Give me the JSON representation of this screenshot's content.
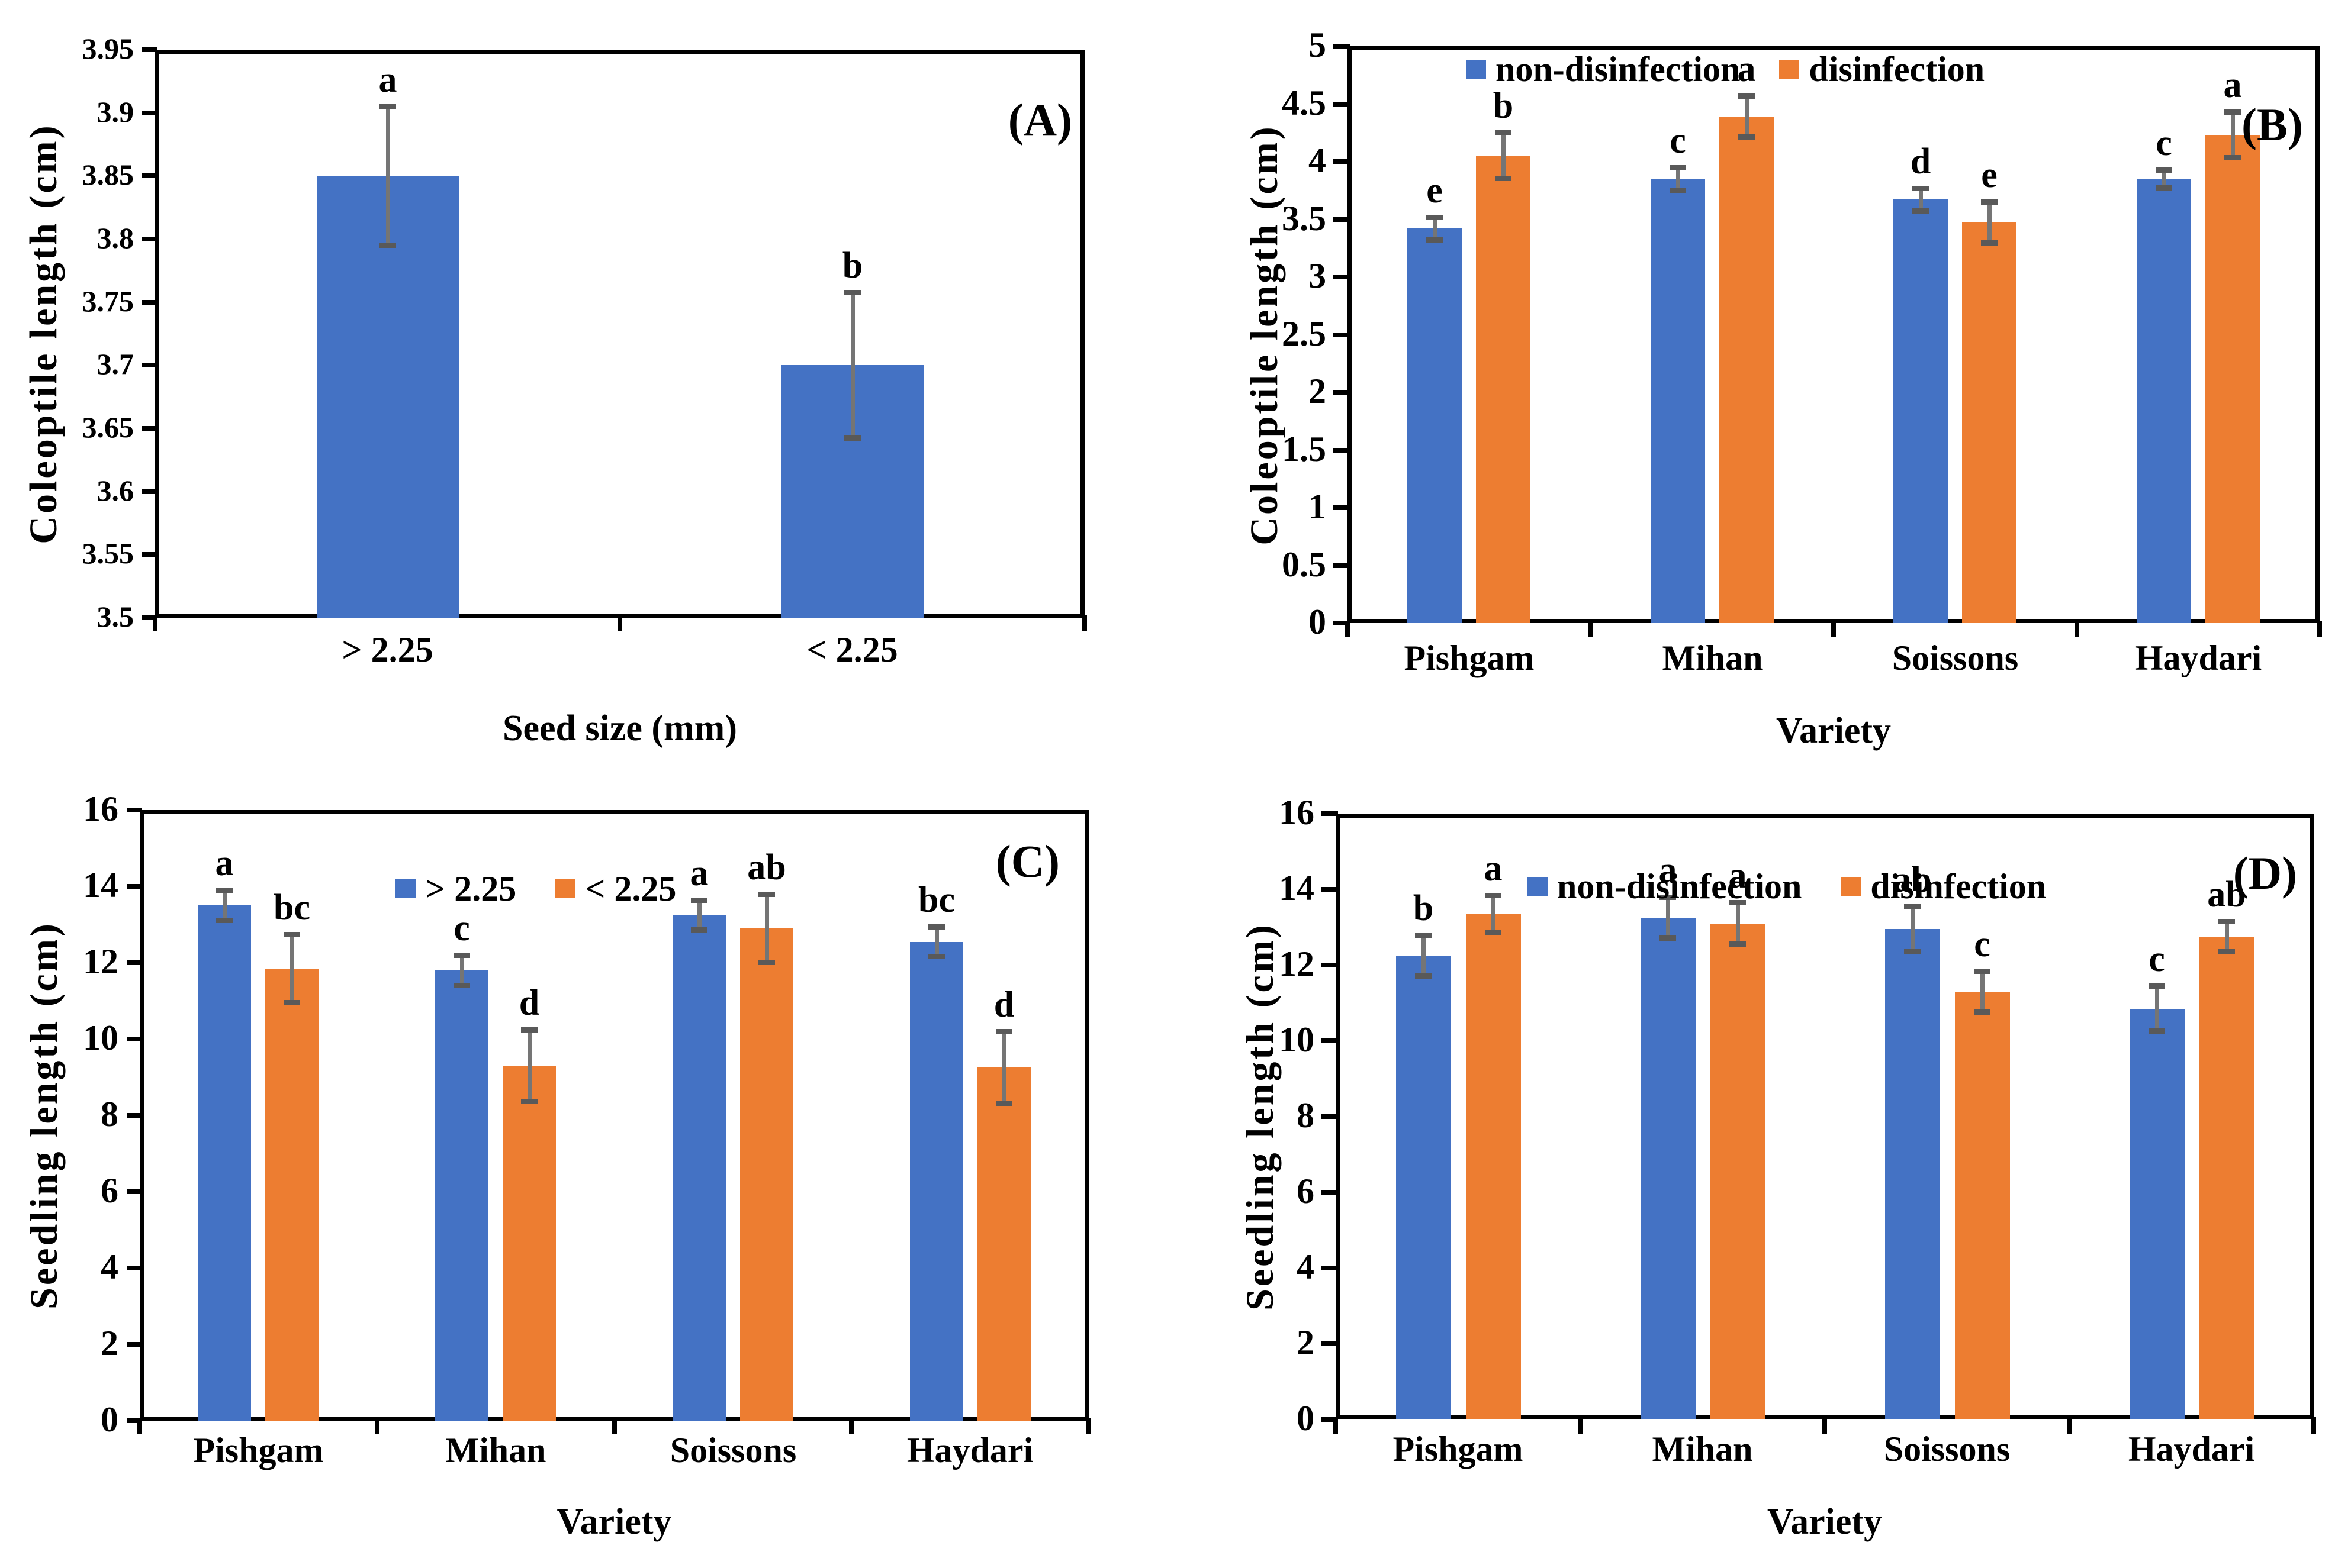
{
  "colors": {
    "series_blue": "#4472C4",
    "series_orange": "#ED7D31",
    "error_bar_line": "#757575",
    "error_bar_cap": "#595959",
    "axis": "#000000",
    "background": "#FFFFFF",
    "text": "#000000"
  },
  "chart_data": [
    {
      "type": "bar",
      "panel_label": "(A)",
      "title": "",
      "xlabel": "Seed size (mm)",
      "ylabel": "Coleoptile length (cm)",
      "ylim": [
        3.5,
        3.95
      ],
      "ytick_labels": [
        "3.5",
        "3.55",
        "3.6",
        "3.65",
        "3.7",
        "3.75",
        "3.8",
        "3.85",
        "3.9",
        "3.95"
      ],
      "grid": false,
      "legend_visible": false,
      "categories": [
        "> 2.25",
        "< 2.25"
      ],
      "series": [
        {
          "name": "",
          "color": "#4472C4",
          "values": [
            3.85,
            3.7
          ],
          "errors": [
            0.055,
            0.058
          ],
          "sig_letters": [
            "a",
            "b"
          ]
        }
      ]
    },
    {
      "type": "bar",
      "panel_label": "(B)",
      "title": "",
      "xlabel": "Variety",
      "ylabel": "Coleoptile length (cm)",
      "ylim": [
        0,
        5
      ],
      "ytick_labels": [
        "0",
        "0.5",
        "1",
        "1.5",
        "2",
        "2.5",
        "3",
        "3.5",
        "4",
        "4.5",
        "5"
      ],
      "grid": false,
      "legend_visible": true,
      "legend_position": "top",
      "categories": [
        "Pishgam",
        "Mihan",
        "Soissons",
        "Haydari"
      ],
      "series": [
        {
          "name": "non-disinfection",
          "color": "#4472C4",
          "values": [
            3.42,
            3.85,
            3.67,
            3.85
          ],
          "errors": [
            0.1,
            0.1,
            0.1,
            0.08
          ],
          "sig_letters": [
            "e",
            "c",
            "d",
            "c"
          ]
        },
        {
          "name": "disinfection",
          "color": "#ED7D31",
          "values": [
            4.05,
            4.39,
            3.47,
            4.23
          ],
          "errors": [
            0.2,
            0.18,
            0.18,
            0.2
          ],
          "sig_letters": [
            "b",
            "a",
            "e",
            "a"
          ]
        }
      ]
    },
    {
      "type": "bar",
      "panel_label": "(C)",
      "title": "",
      "xlabel": "Variety",
      "ylabel": "Seedling length (cm)",
      "ylim": [
        0,
        16
      ],
      "ytick_labels": [
        "0",
        "2",
        "4",
        "6",
        "8",
        "10",
        "12",
        "14",
        "16"
      ],
      "grid": false,
      "legend_visible": true,
      "legend_position": "top",
      "categories": [
        "Pishgam",
        "Mihan",
        "Soissons",
        "Haydari"
      ],
      "series": [
        {
          "name": "> 2.25",
          "color": "#4472C4",
          "values": [
            13.5,
            11.8,
            13.25,
            12.55
          ],
          "errors": [
            0.4,
            0.4,
            0.4,
            0.4
          ],
          "sig_letters": [
            "a",
            "c",
            "a",
            "bc"
          ]
        },
        {
          "name": "< 2.25",
          "color": "#ED7D31",
          "values": [
            11.85,
            9.3,
            12.9,
            9.25
          ],
          "errors": [
            0.9,
            0.95,
            0.9,
            0.95
          ],
          "sig_letters": [
            "bc",
            "d",
            "ab",
            "d"
          ]
        }
      ]
    },
    {
      "type": "bar",
      "panel_label": "(D)",
      "title": "",
      "xlabel": "Variety",
      "ylabel": "Seedling length (cm)",
      "ylim": [
        0,
        16
      ],
      "ytick_labels": [
        "0",
        "2",
        "4",
        "6",
        "8",
        "10",
        "12",
        "14",
        "16"
      ],
      "grid": false,
      "legend_visible": true,
      "legend_position": "top",
      "categories": [
        "Pishgam",
        "Mihan",
        "Soissons",
        "Haydari"
      ],
      "series": [
        {
          "name": "non-disinfection",
          "color": "#4472C4",
          "values": [
            12.25,
            13.25,
            12.95,
            10.85
          ],
          "errors": [
            0.55,
            0.55,
            0.6,
            0.6
          ],
          "sig_letters": [
            "b",
            "a",
            "ab",
            "c"
          ]
        },
        {
          "name": "disinfection",
          "color": "#ED7D31",
          "values": [
            13.35,
            13.1,
            11.3,
            12.75
          ],
          "errors": [
            0.5,
            0.55,
            0.55,
            0.4
          ],
          "sig_letters": [
            "a",
            "a",
            "c",
            "ab"
          ]
        }
      ]
    }
  ]
}
